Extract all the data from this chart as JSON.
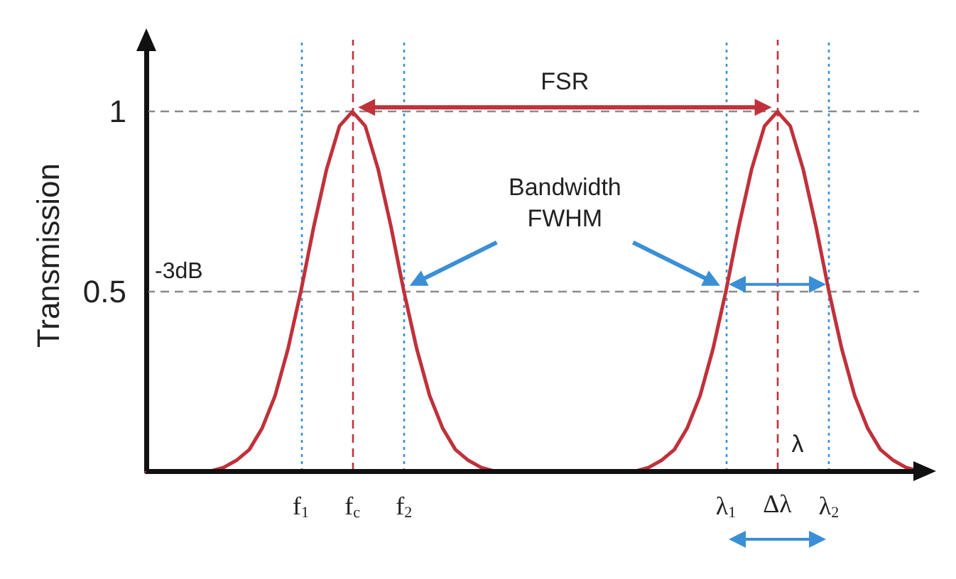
{
  "chart_data": {
    "type": "line",
    "ylabel": "Transmission",
    "categories": [
      null,
      null,
      null,
      null,
      null,
      null,
      null,
      null,
      null,
      null,
      null,
      null,
      "f$_{1}$",
      null,
      null,
      null,
      "f$_{c}$",
      null,
      null,
      null,
      "f$_{2}$",
      null,
      null,
      null,
      null,
      null,
      null,
      null,
      null,
      null,
      null,
      null,
      null,
      null,
      null,
      null,
      null,
      null,
      null,
      null,
      null,
      null,
      null,
      null,
      null,
      "λ$_{1}$",
      null,
      null,
      null,
      "Δλ",
      null,
      null,
      null,
      "λ$_{2}$",
      null,
      null,
      null,
      null,
      null,
      null,
      null
    ],
    "series": [
      {
        "color": "#c0313b",
        "values": [
          0,
          0,
          0,
          0,
          0,
          0,
          0.01,
          0.03,
          0.06,
          0.12,
          0.21,
          0.34,
          0.5,
          0.68,
          0.84,
          0.96,
          1,
          0.96,
          0.84,
          0.68,
          0.5,
          0.34,
          0.21,
          0.12,
          0.06,
          0.03,
          0.01,
          0,
          0,
          0,
          0,
          0,
          0,
          0,
          0,
          0,
          0,
          0,
          0,
          0.01,
          0.03,
          0.06,
          0.12,
          0.21,
          0.34,
          0.5,
          0.68,
          0.84,
          0.96,
          1,
          0.96,
          0.84,
          0.68,
          0.5,
          0.34,
          0.21,
          0.12,
          0.06,
          0.03,
          0.01,
          0
        ]
      }
    ],
    "ylim": [
      0,
      1.2
    ],
    "yticks": [
      0.5,
      1
    ],
    "grid": false,
    "marker": "none",
    "line_style": "solid",
    "ref_lines": [
      {
        "axis": "y",
        "value": 1,
        "label": null,
        "color": "#8a8a8a",
        "line_style": "dashed"
      },
      {
        "axis": "y",
        "value": 0.5,
        "label": "-3dB",
        "color": "#8a8a8a",
        "line_style": "dashed"
      },
      {
        "axis": "x",
        "value": "f$_{1}$",
        "label": null,
        "color": "#3a8fd6",
        "line_style": "dotted"
      },
      {
        "axis": "x",
        "value": "f$_{c}$",
        "label": null,
        "color": "#c0313b",
        "line_style": "dashed"
      },
      {
        "axis": "x",
        "value": "f$_{2}$",
        "label": null,
        "color": "#3a8fd6",
        "line_style": "dotted"
      },
      {
        "axis": "x",
        "value": "λ$_{1}$",
        "label": null,
        "color": "#3a8fd6",
        "line_style": "dotted"
      },
      {
        "axis": "x",
        "value": "Δλ",
        "label": null,
        "color": "#c0313b",
        "line_style": "dashed"
      },
      {
        "axis": "x",
        "value": "λ$_{2}$",
        "label": null,
        "color": "#3a8fd6",
        "line_style": "dotted"
      }
    ],
    "annotations": [
      "FSR",
      "Bandwidth\nFWHM",
      "λ"
    ]
  }
}
